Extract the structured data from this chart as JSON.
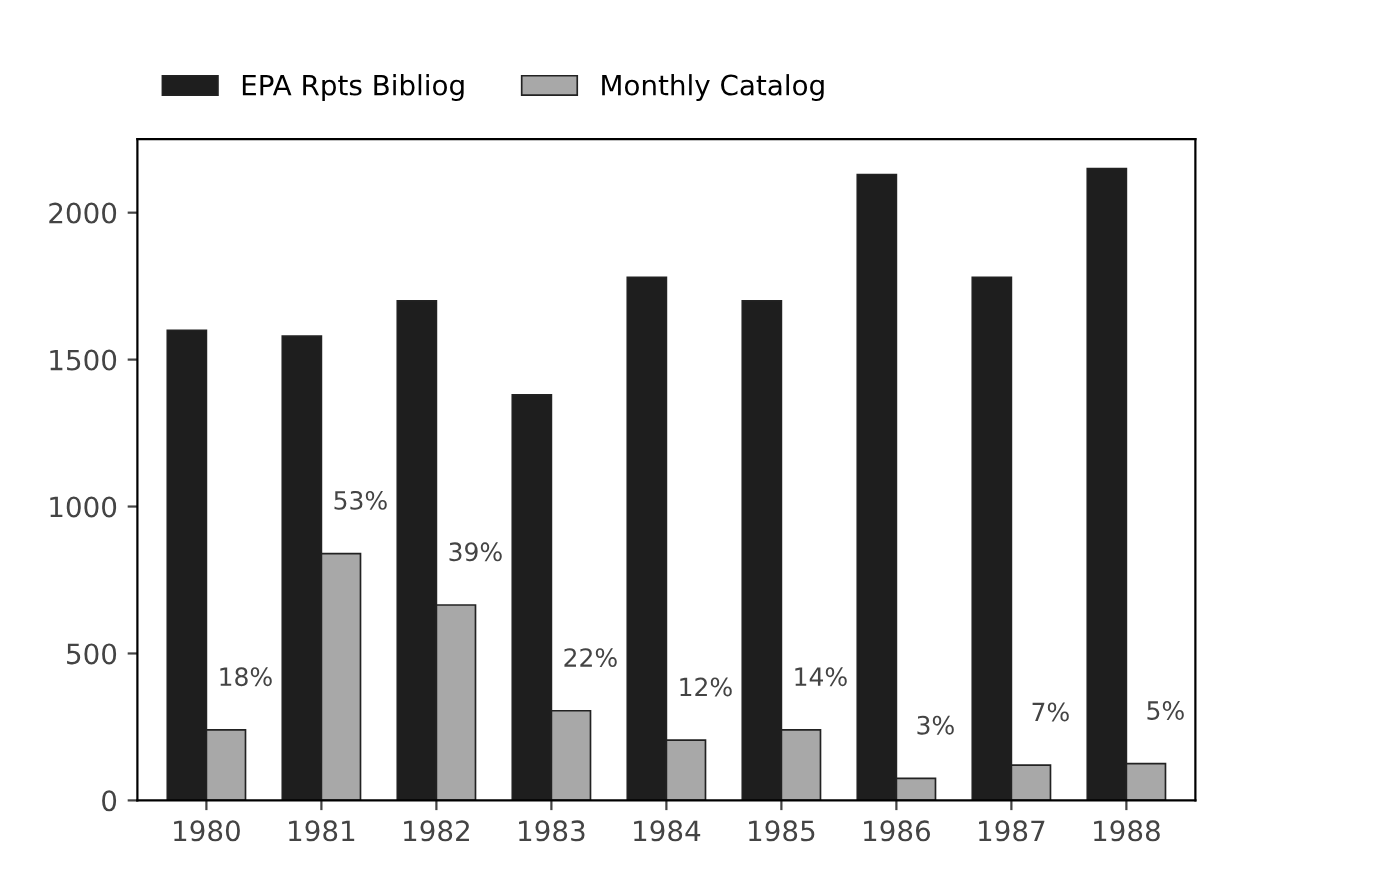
{
  "chart_data": {
    "type": "bar",
    "categories": [
      "1980",
      "1981",
      "1982",
      "1983",
      "1984",
      "1985",
      "1986",
      "1987",
      "1988"
    ],
    "series": [
      {
        "name": "EPA Rpts Bibliog",
        "color": "#1e1e1e",
        "values": [
          1600,
          1580,
          1700,
          1380,
          1780,
          1700,
          2130,
          1780,
          2150
        ]
      },
      {
        "name": "Monthly Catalog",
        "color": "#a8a8a8",
        "values": [
          240,
          840,
          665,
          305,
          205,
          240,
          75,
          120,
          125
        ]
      }
    ],
    "annotations": [
      {
        "text": "18%",
        "x": "1980",
        "y": 240
      },
      {
        "text": "53%",
        "x": "1981",
        "y": 840
      },
      {
        "text": "39%",
        "x": "1982",
        "y": 665
      },
      {
        "text": "22%",
        "x": "1983",
        "y": 305
      },
      {
        "text": "12%",
        "x": "1984",
        "y": 205
      },
      {
        "text": "14%",
        "x": "1985",
        "y": 240
      },
      {
        "text": "3%",
        "x": "1986",
        "y": 75
      },
      {
        "text": "7%",
        "x": "1987",
        "y": 120
      },
      {
        "text": "5%",
        "x": "1988",
        "y": 125
      }
    ],
    "ylim": [
      0,
      2250
    ],
    "yticks": [
      0,
      500,
      1000,
      1500,
      2000
    ],
    "grid": false,
    "legend": "top"
  }
}
